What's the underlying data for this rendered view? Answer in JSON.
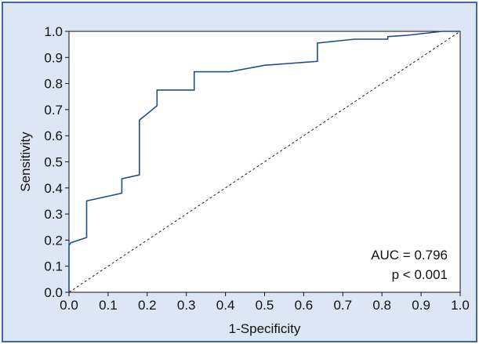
{
  "colors": {
    "panel_background": "#dce6f4",
    "panel_border": "#3b68a6",
    "plot_background": "#ffffff",
    "roc_line": "#1f4e8c",
    "reference_line": "#222222"
  },
  "chart_data": {
    "type": "line",
    "title": "",
    "xlabel": "1-Specificity",
    "ylabel": "Sensitivity",
    "xlim": [
      0.0,
      1.0
    ],
    "ylim": [
      0.0,
      1.0
    ],
    "xticks": [
      "0.0",
      "0.1",
      "0.2",
      "0.3",
      "0.4",
      "0.5",
      "0.6",
      "0.7",
      "0.8",
      "0.9",
      "1.0"
    ],
    "yticks": [
      "0.0",
      "0.1",
      "0.2",
      "0.3",
      "0.4",
      "0.5",
      "0.6",
      "0.7",
      "0.8",
      "0.9",
      "1.0"
    ],
    "grid": false,
    "legend": "none",
    "series": [
      {
        "style": "solid",
        "x": [
          0.0,
          0.0,
          0.005,
          0.045,
          0.045,
          0.09,
          0.135,
          0.135,
          0.18,
          0.18,
          0.205,
          0.225,
          0.225,
          0.32,
          0.32,
          0.41,
          0.5,
          0.635,
          0.635,
          0.73,
          0.815,
          0.815,
          0.865,
          0.955,
          0.99,
          1.0
        ],
        "y": [
          0.0,
          0.18,
          0.19,
          0.21,
          0.35,
          0.365,
          0.38,
          0.435,
          0.45,
          0.66,
          0.69,
          0.715,
          0.775,
          0.775,
          0.845,
          0.845,
          0.87,
          0.885,
          0.955,
          0.97,
          0.97,
          0.98,
          0.985,
          1.0,
          1.0,
          1.0
        ]
      },
      {
        "style": "dashed",
        "x": [
          0.0,
          1.0
        ],
        "y": [
          0.0,
          1.0
        ]
      }
    ],
    "annotations": [
      "AUC = 0.796",
      "p < 0.001"
    ]
  }
}
